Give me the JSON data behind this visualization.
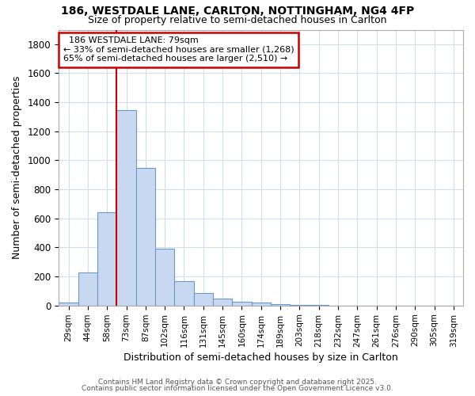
{
  "title1": "186, WESTDALE LANE, CARLTON, NOTTINGHAM, NG4 4FP",
  "title2": "Size of property relative to semi-detached houses in Carlton",
  "xlabel": "Distribution of semi-detached houses by size in Carlton",
  "ylabel": "Number of semi-detached properties",
  "bar_labels": [
    "29sqm",
    "44sqm",
    "58sqm",
    "73sqm",
    "87sqm",
    "102sqm",
    "116sqm",
    "131sqm",
    "145sqm",
    "160sqm",
    "174sqm",
    "189sqm",
    "203sqm",
    "218sqm",
    "232sqm",
    "247sqm",
    "261sqm",
    "276sqm",
    "290sqm",
    "305sqm",
    "319sqm"
  ],
  "bar_values": [
    20,
    230,
    645,
    1345,
    950,
    390,
    170,
    85,
    48,
    28,
    18,
    8,
    3,
    2,
    1,
    1,
    0,
    0,
    0,
    0,
    0
  ],
  "bar_color": "#c8d8f0",
  "bar_edge_color": "#6699cc",
  "annotation_title": "186 WESTDALE LANE: 79sqm",
  "annotation_line1": "← 33% of semi-detached houses are smaller (1,268)",
  "annotation_line2": "65% of semi-detached houses are larger (2,510) →",
  "vline_color": "#cc0000",
  "vline_bin": 3,
  "background_color": "#ffffff",
  "plot_bg_color": "#ffffff",
  "grid_color": "#d0ddf0",
  "annotation_box_facecolor": "#ffffff",
  "annotation_box_edgecolor": "#cc0000",
  "ylim": [
    0,
    1900
  ],
  "yticks": [
    0,
    200,
    400,
    600,
    800,
    1000,
    1200,
    1400,
    1600,
    1800
  ],
  "footer1": "Contains HM Land Registry data © Crown copyright and database right 2025.",
  "footer2": "Contains public sector information licensed under the Open Government Licence v3.0."
}
